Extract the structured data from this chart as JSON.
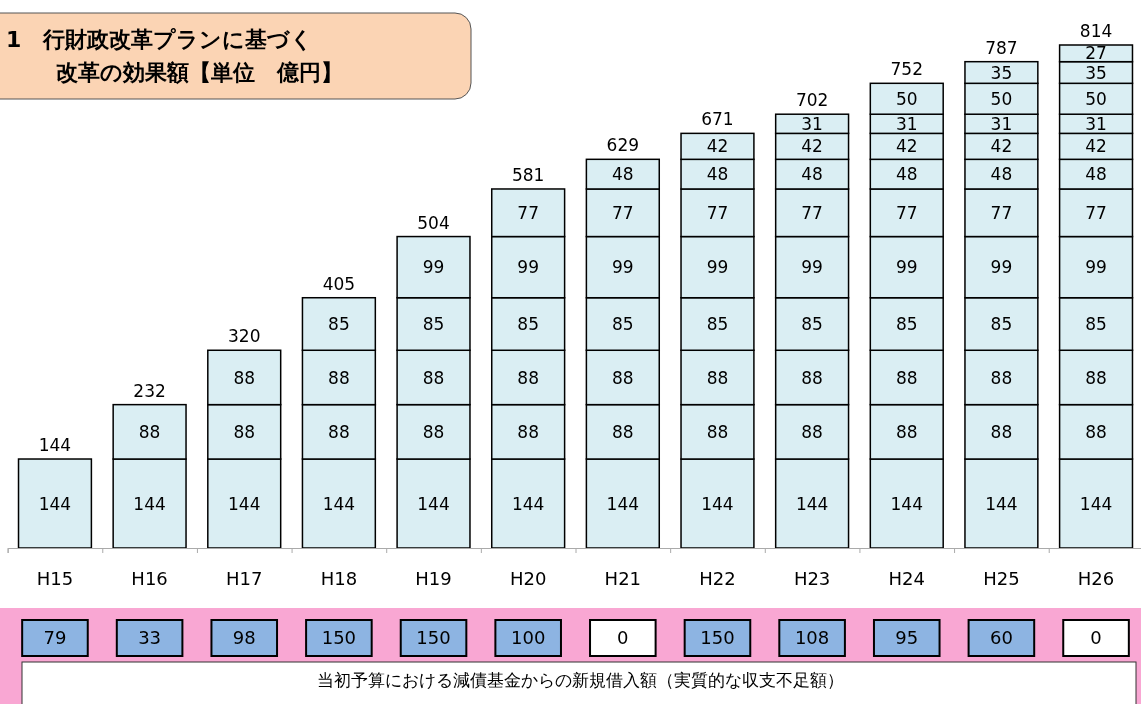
{
  "chart_data": [
    {
      "type": "bar",
      "title": "1　行財政改革プランに基づく",
      "subtitle": "改革の効果額【単位　億円】",
      "stacked": true,
      "data_labels": true,
      "grid": false,
      "categories": [
        "H15",
        "H16",
        "H17",
        "H18",
        "H19",
        "H20",
        "H21",
        "H22",
        "H23",
        "H24",
        "H25",
        "H26"
      ],
      "series": [
        {
          "color": "#daeef3",
          "values": [
            144,
            144,
            144,
            144,
            144,
            144,
            144,
            144,
            144,
            144,
            144,
            144
          ]
        },
        {
          "color": "#daeef3",
          "values": [
            null,
            88,
            88,
            88,
            88,
            88,
            88,
            88,
            88,
            88,
            88,
            88
          ]
        },
        {
          "color": "#daeef3",
          "values": [
            null,
            null,
            88,
            88,
            88,
            88,
            88,
            88,
            88,
            88,
            88,
            88
          ]
        },
        {
          "color": "#daeef3",
          "values": [
            null,
            null,
            null,
            85,
            85,
            85,
            85,
            85,
            85,
            85,
            85,
            85
          ]
        },
        {
          "color": "#daeef3",
          "values": [
            null,
            null,
            null,
            null,
            99,
            99,
            99,
            99,
            99,
            99,
            99,
            99
          ]
        },
        {
          "color": "#daeef3",
          "values": [
            null,
            null,
            null,
            null,
            null,
            77,
            77,
            77,
            77,
            77,
            77,
            77
          ]
        },
        {
          "color": "#daeef3",
          "values": [
            null,
            null,
            null,
            null,
            null,
            null,
            48,
            48,
            48,
            48,
            48,
            48
          ]
        },
        {
          "color": "#daeef3",
          "values": [
            null,
            null,
            null,
            null,
            null,
            null,
            null,
            42,
            42,
            42,
            42,
            42
          ]
        },
        {
          "color": "#daeef3",
          "values": [
            null,
            null,
            null,
            null,
            null,
            null,
            null,
            null,
            31,
            31,
            31,
            31
          ]
        },
        {
          "color": "#daeef3",
          "values": [
            null,
            null,
            null,
            null,
            null,
            null,
            null,
            null,
            null,
            50,
            50,
            50
          ]
        },
        {
          "color": "#daeef3",
          "values": [
            null,
            null,
            null,
            null,
            null,
            null,
            null,
            null,
            null,
            null,
            35,
            35
          ]
        },
        {
          "color": "#daeef3",
          "values": [
            null,
            null,
            null,
            null,
            null,
            null,
            null,
            null,
            null,
            null,
            null,
            27
          ]
        }
      ],
      "totals": [
        "144",
        "232",
        "320",
        "405",
        "504",
        "581",
        "629",
        "671",
        "702",
        "752",
        "787",
        "814"
      ]
    },
    {
      "type": "other",
      "data_labels": true,
      "values": [
        79,
        33,
        98,
        150,
        150,
        100,
        0,
        150,
        108,
        95,
        60,
        0
      ],
      "colors": [
        "#8db4e2",
        "#8db4e2",
        "#8db4e2",
        "#8db4e2",
        "#8db4e2",
        "#8db4e2",
        "#ffffff",
        "#8db4e2",
        "#8db4e2",
        "#8db4e2",
        "#8db4e2",
        "#ffffff"
      ],
      "annotations": [
        "当初予算における減債基金からの新規借入額（実質的な収支不足額）"
      ]
    }
  ]
}
